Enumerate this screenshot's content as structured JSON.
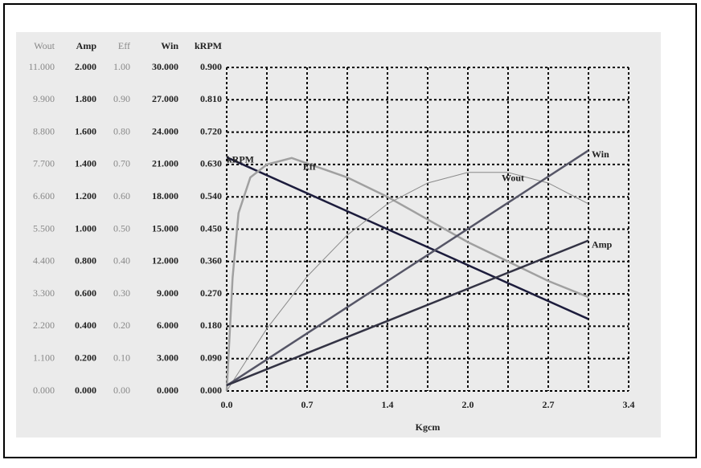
{
  "chart_data": {
    "type": "line",
    "x_label": "Kgcm",
    "xlim": [
      0,
      3.4
    ],
    "xticks": [
      {
        "value": 0,
        "label": "0.0"
      },
      {
        "value": 0.68,
        "label": "0.7"
      },
      {
        "value": 1.36,
        "label": "1.4"
      },
      {
        "value": 2.04,
        "label": "2.0"
      },
      {
        "value": 2.72,
        "label": "2.7"
      },
      3.4
    ],
    "xminor": [
      0.34,
      1.02,
      1.7,
      2.38,
      3.06
    ],
    "grid": true,
    "y_axes": [
      {
        "title": "Wout",
        "ylim": [
          0,
          11
        ],
        "yticks": [
          {
            "value": 0,
            "label": "0.000"
          },
          {
            "value": 1.1,
            "label": "1.100"
          },
          {
            "value": 2.2,
            "label": "2.200"
          },
          {
            "value": 3.3,
            "label": "3.300"
          },
          {
            "value": 4.4,
            "label": "4.400"
          },
          {
            "value": 5.5,
            "label": "5.500"
          },
          {
            "value": 6.6,
            "label": "6.600"
          },
          {
            "value": 7.7,
            "label": "7.700"
          },
          {
            "value": 8.8,
            "label": "8.800"
          },
          {
            "value": 9.9,
            "label": "9.900"
          },
          {
            "value": 11,
            "label": "11.000"
          }
        ]
      },
      {
        "title": "Amp",
        "ylim": [
          0,
          2
        ],
        "yticks": [
          {
            "value": 0,
            "label": "0.000"
          },
          {
            "value": 0.2,
            "label": "0.200"
          },
          {
            "value": 0.4,
            "label": "0.400"
          },
          {
            "value": 0.6,
            "label": "0.600"
          },
          {
            "value": 0.8,
            "label": "0.800"
          },
          {
            "value": 1,
            "label": "1.000"
          },
          {
            "value": 1.2,
            "label": "1.200"
          },
          {
            "value": 1.4,
            "label": "1.400"
          },
          {
            "value": 1.6,
            "label": "1.600"
          },
          {
            "value": 1.8,
            "label": "1.800"
          },
          {
            "value": 2,
            "label": "2.000"
          }
        ]
      },
      {
        "title": "Eff",
        "ylim": [
          0,
          1
        ],
        "yticks": [
          {
            "value": 0,
            "label": "0.00"
          },
          {
            "value": 0.1,
            "label": "0.10"
          },
          {
            "value": 0.2,
            "label": "0.20"
          },
          {
            "value": 0.3,
            "label": "0.30"
          },
          {
            "value": 0.4,
            "label": "0.40"
          },
          {
            "value": 0.5,
            "label": "0.50"
          },
          {
            "value": 0.6,
            "label": "0.60"
          },
          {
            "value": 0.7,
            "label": "0.70"
          },
          {
            "value": 0.8,
            "label": "0.80"
          },
          {
            "value": 0.9,
            "label": "0.90"
          },
          {
            "value": 1,
            "label": "1.00"
          }
        ]
      },
      {
        "title": "Win",
        "ylim": [
          0,
          30
        ],
        "yticks": [
          {
            "value": 0,
            "label": "0.000"
          },
          {
            "value": 3,
            "label": "3.000"
          },
          {
            "value": 6,
            "label": "6.000"
          },
          {
            "value": 9,
            "label": "9.000"
          },
          {
            "value": 12,
            "label": "12.000"
          },
          {
            "value": 15,
            "label": "15.000"
          },
          {
            "value": 18,
            "label": "18.000"
          },
          {
            "value": 21,
            "label": "21.000"
          },
          {
            "value": 24,
            "label": "24.000"
          },
          {
            "value": 27,
            "label": "27.000"
          },
          {
            "value": 30,
            "label": "30.000"
          }
        ]
      },
      {
        "title": "kRPM",
        "ylim": [
          0,
          0.9
        ],
        "yticks": [
          {
            "value": 0,
            "label": "0.000"
          },
          {
            "value": 0.09,
            "label": "0.090"
          },
          {
            "value": 0.18,
            "label": "0.180"
          },
          {
            "value": 0.27,
            "label": "0.270"
          },
          {
            "value": 0.36,
            "label": "0.360"
          },
          {
            "value": 0.45,
            "label": "0.450"
          },
          {
            "value": 0.54,
            "label": "0.540"
          },
          {
            "value": 0.63,
            "label": "0.630"
          },
          {
            "value": 0.72,
            "label": "0.720"
          },
          {
            "value": 0.81,
            "label": "0.810"
          },
          {
            "value": 0.9,
            "label": "0.900"
          }
        ]
      }
    ],
    "series": [
      {
        "name": "kRPM",
        "color": "#1c1c3c",
        "x": [
          0,
          3.06
        ],
        "values": [
          0.65,
          0.2
        ]
      },
      {
        "name": "Eff",
        "color": "#a0a0a0",
        "x": [
          0,
          0.05,
          0.1,
          0.2,
          0.34,
          0.55,
          1.02,
          1.36,
          1.7,
          2.04,
          2.38,
          2.72,
          3.06
        ],
        "values": [
          0,
          0.35,
          0.55,
          0.66,
          0.7,
          0.72,
          0.66,
          0.6,
          0.53,
          0.46,
          0.4,
          0.34,
          0.29
        ]
      },
      {
        "name": "Wout",
        "color": "#8a8a8a",
        "x": [
          0,
          0.34,
          0.68,
          1.02,
          1.36,
          1.7,
          2.04,
          2.38,
          2.72,
          3.06
        ],
        "values": [
          0,
          2.12,
          3.89,
          5.3,
          6.36,
          7.07,
          7.43,
          7.43,
          7.07,
          6.36
        ]
      },
      {
        "name": "Win",
        "color": "#555566",
        "x": [
          0,
          3.06
        ],
        "values": [
          0.5,
          22.3
        ]
      },
      {
        "name": "Amp",
        "color": "#333344",
        "x": [
          0,
          3.06
        ],
        "values": [
          0.035,
          0.93
        ]
      }
    ]
  }
}
